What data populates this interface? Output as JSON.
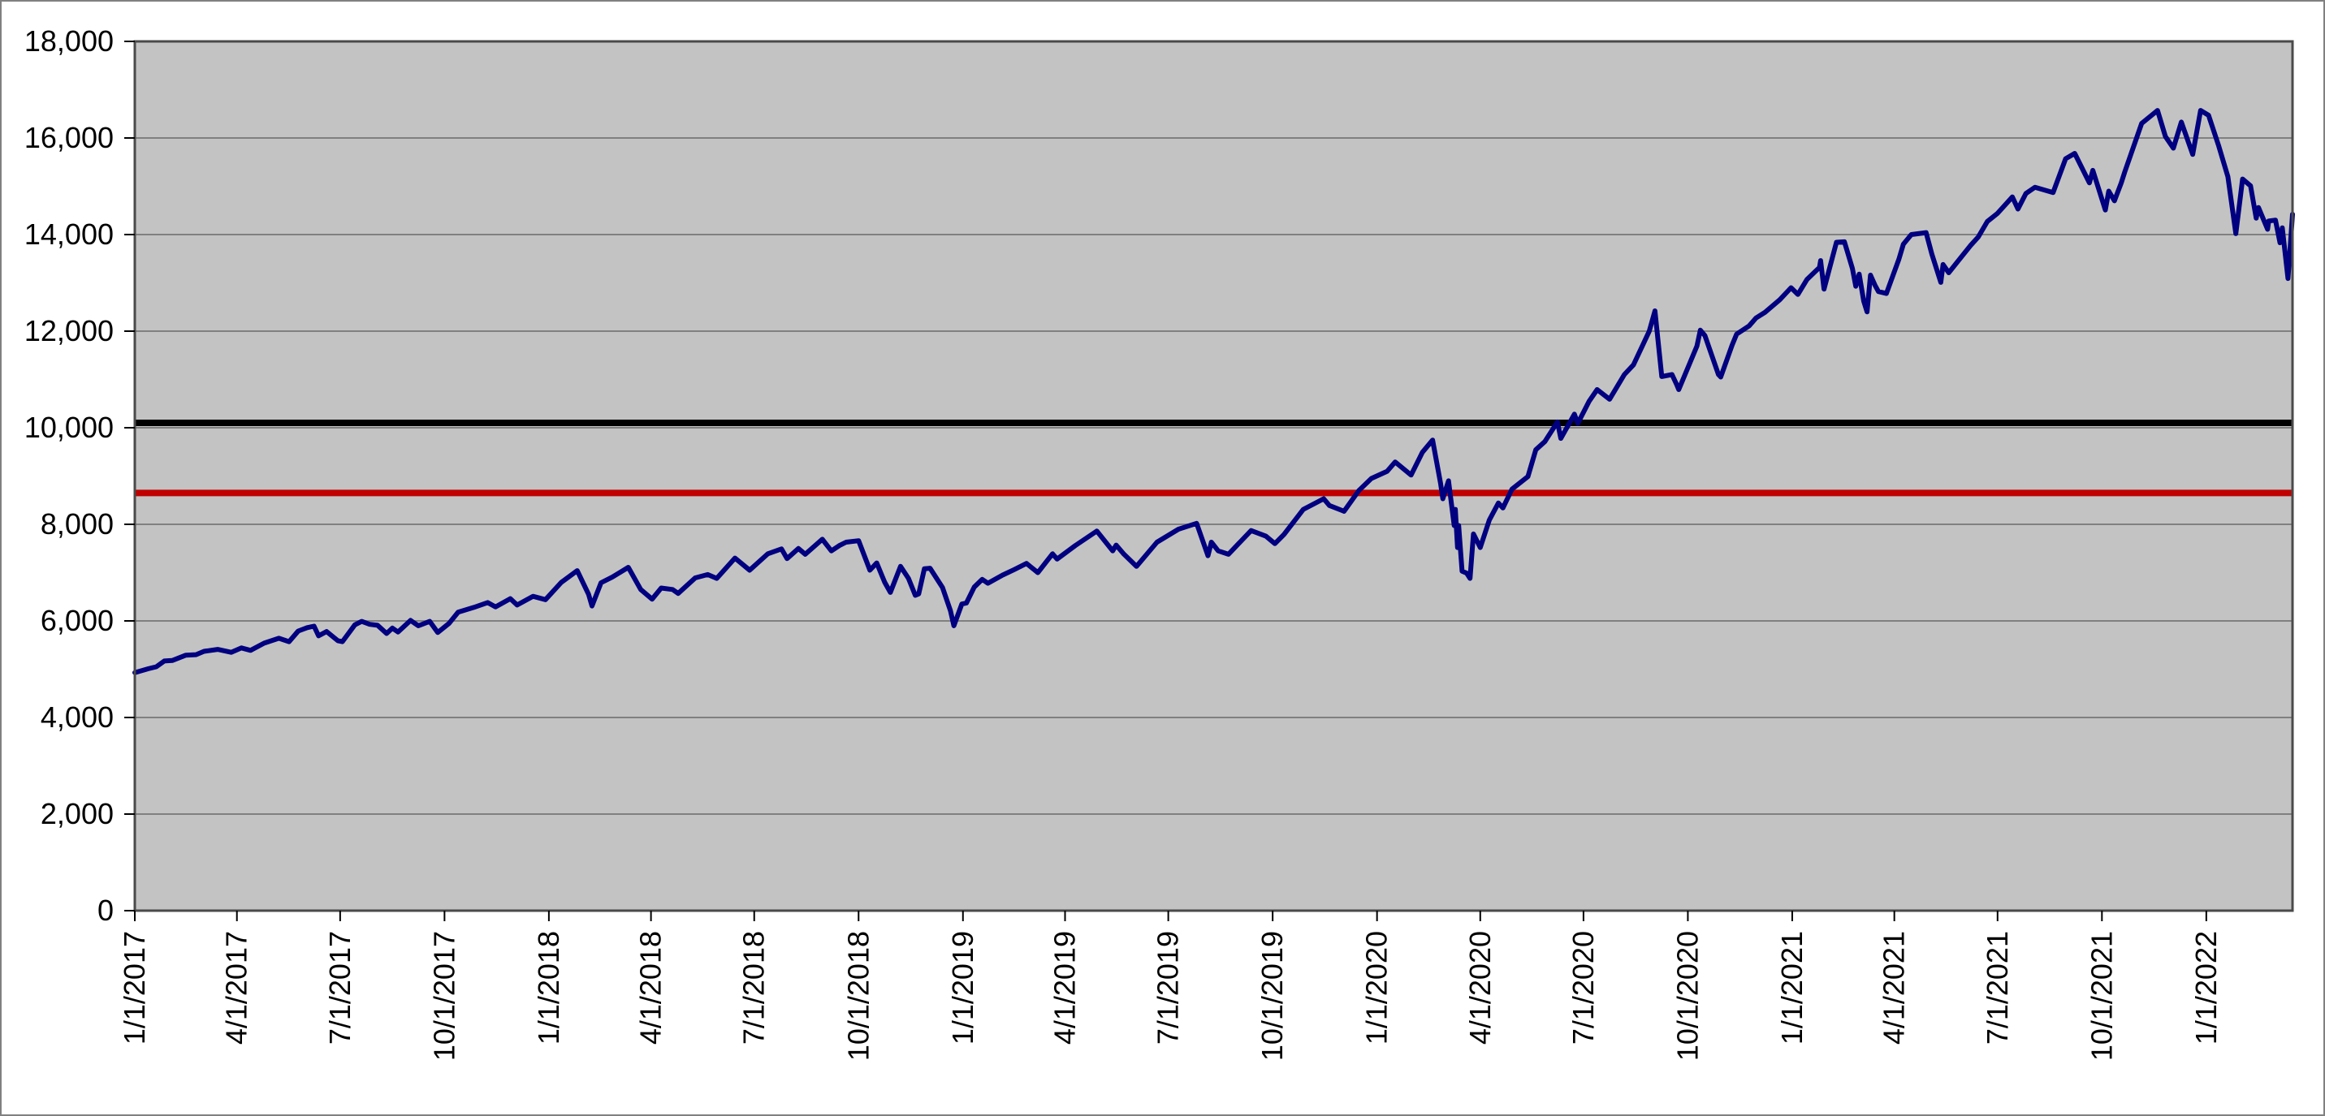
{
  "chart_data": {
    "type": "line",
    "title": "",
    "xlabel": "",
    "ylabel": "",
    "legend_position": "none",
    "grid": true,
    "colors": {
      "chart_background": "#FFFFFF",
      "chart_border": "#808080",
      "plot_background": "#C3C3C3",
      "plot_border": "#4A4A4A",
      "gridline": "#808080",
      "axis": "#000000",
      "tick_text": "#000000"
    },
    "y_axis": {
      "min": 0,
      "max": 18000,
      "step": 2000,
      "tick_labels": [
        "0",
        "2,000",
        "4,000",
        "6,000",
        "8,000",
        "10,000",
        "12,000",
        "14,000",
        "16,000",
        "18,000"
      ]
    },
    "x_axis": {
      "start": "1/1/2017",
      "end": "3/18/2022",
      "tick_labels": [
        "1/1/2017",
        "4/1/2017",
        "7/1/2017",
        "10/1/2017",
        "1/1/2018",
        "4/1/2018",
        "7/1/2018",
        "10/1/2018",
        "1/1/2019",
        "4/1/2019",
        "7/1/2019",
        "10/1/2019",
        "1/1/2020",
        "4/1/2020",
        "7/1/2020",
        "10/1/2020",
        "1/1/2021",
        "4/1/2021",
        "7/1/2021",
        "10/1/2021",
        "1/1/2022"
      ]
    },
    "reference_lines": [
      {
        "name": "black-reference-line",
        "value": 10100,
        "color": "#000000",
        "width": 8
      },
      {
        "name": "red-reference-line",
        "value": 8650,
        "color": "#C00000",
        "width": 8
      }
    ],
    "series": [
      {
        "name": "main-series",
        "color": "#000080",
        "width": 6,
        "points": [
          [
            "1/1/2017",
            4930
          ],
          [
            "1/13/2017",
            5010
          ],
          [
            "1/20/2017",
            5050
          ],
          [
            "1/27/2017",
            5170
          ],
          [
            "2/3/2017",
            5180
          ],
          [
            "2/15/2017",
            5290
          ],
          [
            "2/24/2017",
            5300
          ],
          [
            "3/3/2017",
            5370
          ],
          [
            "3/15/2017",
            5410
          ],
          [
            "3/27/2017",
            5350
          ],
          [
            "4/5/2017",
            5440
          ],
          [
            "4/13/2017",
            5390
          ],
          [
            "4/25/2017",
            5540
          ],
          [
            "5/8/2017",
            5640
          ],
          [
            "5/17/2017",
            5570
          ],
          [
            "5/25/2017",
            5790
          ],
          [
            "6/2/2017",
            5860
          ],
          [
            "6/8/2017",
            5890
          ],
          [
            "6/12/2017",
            5690
          ],
          [
            "6/19/2017",
            5780
          ],
          [
            "6/29/2017",
            5590
          ],
          [
            "7/3/2017",
            5570
          ],
          [
            "7/14/2017",
            5920
          ],
          [
            "7/20/2017",
            5990
          ],
          [
            "7/27/2017",
            5930
          ],
          [
            "8/3/2017",
            5910
          ],
          [
            "8/11/2017",
            5740
          ],
          [
            "8/16/2017",
            5850
          ],
          [
            "8/21/2017",
            5770
          ],
          [
            "9/1/2017",
            6010
          ],
          [
            "9/8/2017",
            5900
          ],
          [
            "9/18/2017",
            5990
          ],
          [
            "9/25/2017",
            5760
          ],
          [
            "10/5/2017",
            5950
          ],
          [
            "10/13/2017",
            6180
          ],
          [
            "10/27/2017",
            6280
          ],
          [
            "11/8/2017",
            6380
          ],
          [
            "11/15/2017",
            6290
          ],
          [
            "11/28/2017",
            6460
          ],
          [
            "12/4/2017",
            6330
          ],
          [
            "12/18/2017",
            6510
          ],
          [
            "12/29/2017",
            6440
          ],
          [
            "1/12/2018",
            6800
          ],
          [
            "1/26/2018",
            7040
          ],
          [
            "2/5/2018",
            6550
          ],
          [
            "2/8/2018",
            6310
          ],
          [
            "2/16/2018",
            6790
          ],
          [
            "2/26/2018",
            6910
          ],
          [
            "3/12/2018",
            7110
          ],
          [
            "3/23/2018",
            6650
          ],
          [
            "4/2/2018",
            6450
          ],
          [
            "4/10/2018",
            6680
          ],
          [
            "4/20/2018",
            6650
          ],
          [
            "4/25/2018",
            6570
          ],
          [
            "5/10/2018",
            6890
          ],
          [
            "5/21/2018",
            6960
          ],
          [
            "5/29/2018",
            6880
          ],
          [
            "6/14/2018",
            7300
          ],
          [
            "6/27/2018",
            7050
          ],
          [
            "7/13/2018",
            7390
          ],
          [
            "7/25/2018",
            7490
          ],
          [
            "7/30/2018",
            7290
          ],
          [
            "8/9/2018",
            7500
          ],
          [
            "8/15/2018",
            7380
          ],
          [
            "8/30/2018",
            7690
          ],
          [
            "9/7/2018",
            7450
          ],
          [
            "9/14/2018",
            7560
          ],
          [
            "9/20/2018",
            7630
          ],
          [
            "10/1/2018",
            7660
          ],
          [
            "10/11/2018",
            7050
          ],
          [
            "10/17/2018",
            7200
          ],
          [
            "10/24/2018",
            6800
          ],
          [
            "10/29/2018",
            6590
          ],
          [
            "11/7/2018",
            7130
          ],
          [
            "11/14/2018",
            6880
          ],
          [
            "11/20/2018",
            6530
          ],
          [
            "11/23/2018",
            6560
          ],
          [
            "11/28/2018",
            7080
          ],
          [
            "12/3/2018",
            7090
          ],
          [
            "12/14/2018",
            6690
          ],
          [
            "12/21/2018",
            6210
          ],
          [
            "12/24/2018",
            5900
          ],
          [
            "12/31/2018",
            6350
          ],
          [
            "1/4/2019",
            6370
          ],
          [
            "1/11/2019",
            6700
          ],
          [
            "1/18/2019",
            6860
          ],
          [
            "1/23/2019",
            6780
          ],
          [
            "2/5/2019",
            6950
          ],
          [
            "2/15/2019",
            7060
          ],
          [
            "2/26/2019",
            7190
          ],
          [
            "3/8/2019",
            7000
          ],
          [
            "3/21/2019",
            7390
          ],
          [
            "3/25/2019",
            7280
          ],
          [
            "4/10/2019",
            7560
          ],
          [
            "4/29/2019",
            7860
          ],
          [
            "5/13/2019",
            7450
          ],
          [
            "5/16/2019",
            7570
          ],
          [
            "5/23/2019",
            7380
          ],
          [
            "6/3/2019",
            7130
          ],
          [
            "6/21/2019",
            7630
          ],
          [
            "7/10/2019",
            7900
          ],
          [
            "7/26/2019",
            8020
          ],
          [
            "8/5/2019",
            7350
          ],
          [
            "8/8/2019",
            7630
          ],
          [
            "8/14/2019",
            7450
          ],
          [
            "8/23/2019",
            7380
          ],
          [
            "9/12/2019",
            7870
          ],
          [
            "9/25/2019",
            7755
          ],
          [
            "10/3/2019",
            7600
          ],
          [
            "10/11/2019",
            7790
          ],
          [
            "10/28/2019",
            8310
          ],
          [
            "11/15/2019",
            8530
          ],
          [
            "11/20/2019",
            8390
          ],
          [
            "12/3/2019",
            8270
          ],
          [
            "12/16/2019",
            8700
          ],
          [
            "12/27/2019",
            8950
          ],
          [
            "1/10/2020",
            9100
          ],
          [
            "1/17/2020",
            9290
          ],
          [
            "1/31/2020",
            9020
          ],
          [
            "2/10/2020",
            9490
          ],
          [
            "2/19/2020",
            9745
          ],
          [
            "2/26/2020",
            8850
          ],
          [
            "2/28/2020",
            8530
          ],
          [
            "3/4/2020",
            8900
          ],
          [
            "3/9/2020",
            7975
          ],
          [
            "3/10/2020",
            8310
          ],
          [
            "3/12/2020",
            7520
          ],
          [
            "3/13/2020",
            7975
          ],
          [
            "3/16/2020",
            7030
          ],
          [
            "3/20/2020",
            6990
          ],
          [
            "3/23/2020",
            6880
          ],
          [
            "3/26/2020",
            7800
          ],
          [
            "4/1/2020",
            7520
          ],
          [
            "4/9/2020",
            8090
          ],
          [
            "4/17/2020",
            8440
          ],
          [
            "4/21/2020",
            8340
          ],
          [
            "4/29/2020",
            8730
          ],
          [
            "5/13/2020",
            8990
          ],
          [
            "5/20/2020",
            9545
          ],
          [
            "5/28/2020",
            9715
          ],
          [
            "6/8/2020",
            10120
          ],
          [
            "6/11/2020",
            9780
          ],
          [
            "6/23/2020",
            10280
          ],
          [
            "6/26/2020",
            10090
          ],
          [
            "7/6/2020",
            10550
          ],
          [
            "7/13/2020",
            10790
          ],
          [
            "7/24/2020",
            10590
          ],
          [
            "8/6/2020",
            11100
          ],
          [
            "8/14/2020",
            11300
          ],
          [
            "8/28/2020",
            12000
          ],
          [
            "9/2/2020",
            12420
          ],
          [
            "9/8/2020",
            11060
          ],
          [
            "9/17/2020",
            11100
          ],
          [
            "9/21/2020",
            10900
          ],
          [
            "9/23/2020",
            10790
          ],
          [
            "10/9/2020",
            11690
          ],
          [
            "10/12/2020",
            12020
          ],
          [
            "10/16/2020",
            11910
          ],
          [
            "10/28/2020",
            11100
          ],
          [
            "10/30/2020",
            11050
          ],
          [
            "11/9/2020",
            11710
          ],
          [
            "11/13/2020",
            11940
          ],
          [
            "11/24/2020",
            12110
          ],
          [
            "11/30/2020",
            12270
          ],
          [
            "12/8/2020",
            12390
          ],
          [
            "12/21/2020",
            12650
          ],
          [
            "12/31/2020",
            12900
          ],
          [
            "1/6/2021",
            12760
          ],
          [
            "1/14/2021",
            13070
          ],
          [
            "1/25/2021",
            13320
          ],
          [
            "1/26/2021",
            13460
          ],
          [
            "1/29/2021",
            12870
          ],
          [
            "2/9/2021",
            13840
          ],
          [
            "2/16/2021",
            13850
          ],
          [
            "2/23/2021",
            13300
          ],
          [
            "2/26/2021",
            12930
          ],
          [
            "3/1/2021",
            13180
          ],
          [
            "3/5/2021",
            12620
          ],
          [
            "3/8/2021",
            12400
          ],
          [
            "3/11/2021",
            13160
          ],
          [
            "3/15/2021",
            12950
          ],
          [
            "3/18/2021",
            12820
          ],
          [
            "3/25/2021",
            12780
          ],
          [
            "4/5/2021",
            13490
          ],
          [
            "4/9/2021",
            13800
          ],
          [
            "4/16/2021",
            14000
          ],
          [
            "4/29/2021",
            14040
          ],
          [
            "5/4/2021",
            13600
          ],
          [
            "5/12/2021",
            13010
          ],
          [
            "5/14/2021",
            13380
          ],
          [
            "5/19/2021",
            13210
          ],
          [
            "6/7/2021",
            13770
          ],
          [
            "6/14/2021",
            13950
          ],
          [
            "6/22/2021",
            14270
          ],
          [
            "7/1/2021",
            14440
          ],
          [
            "7/14/2021",
            14780
          ],
          [
            "7/19/2021",
            14530
          ],
          [
            "7/26/2021",
            14850
          ],
          [
            "8/3/2021",
            14980
          ],
          [
            "8/19/2021",
            14870
          ],
          [
            "8/30/2021",
            15570
          ],
          [
            "9/7/2021",
            15680
          ],
          [
            "9/20/2021",
            15070
          ],
          [
            "9/23/2021",
            15330
          ],
          [
            "10/4/2021",
            14510
          ],
          [
            "10/7/2021",
            14900
          ],
          [
            "10/12/2021",
            14700
          ],
          [
            "10/18/2021",
            15070
          ],
          [
            "10/21/2021",
            15290
          ],
          [
            "11/5/2021",
            16300
          ],
          [
            "11/19/2021",
            16570
          ],
          [
            "11/26/2021",
            16030
          ],
          [
            "12/3/2021",
            15790
          ],
          [
            "12/10/2021",
            16330
          ],
          [
            "12/20/2021",
            15660
          ],
          [
            "12/27/2021",
            16570
          ],
          [
            "1/3/2022",
            16470
          ],
          [
            "1/12/2022",
            15830
          ],
          [
            "1/20/2022",
            15200
          ],
          [
            "1/27/2022",
            14020
          ],
          [
            "2/2/2022",
            15150
          ],
          [
            "2/9/2022",
            15010
          ],
          [
            "2/14/2022",
            14340
          ],
          [
            "2/16/2022",
            14560
          ],
          [
            "2/24/2022",
            14110
          ],
          [
            "2/25/2022",
            14280
          ],
          [
            "3/3/2022",
            14300
          ],
          [
            "3/7/2022",
            13830
          ],
          [
            "3/9/2022",
            14140
          ],
          [
            "3/14/2022",
            13090
          ],
          [
            "3/18/2022",
            14420
          ]
        ]
      }
    ]
  }
}
